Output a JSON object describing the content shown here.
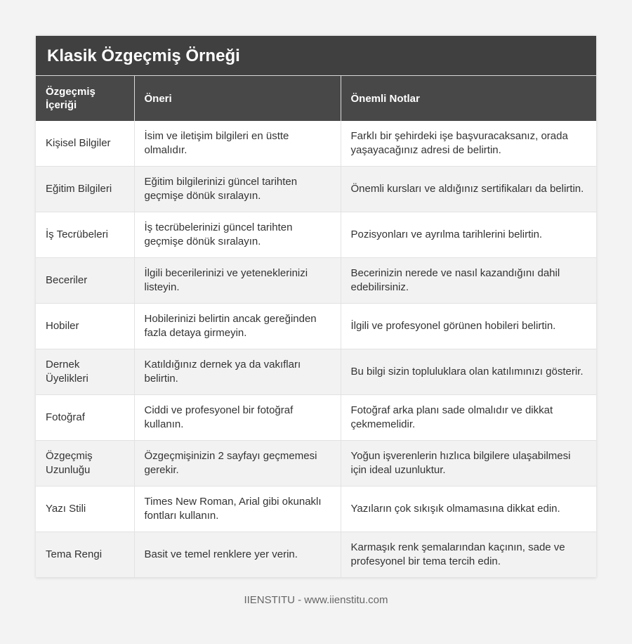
{
  "title": "Klasik Özgeçmiş Örneği",
  "headers": [
    "Özgeçmiş İçeriği",
    "Öneri",
    "Önemli Notlar"
  ],
  "rows": [
    [
      "Kişisel Bilgiler",
      "İsim ve iletişim bilgileri en üstte olmalıdır.",
      "Farklı bir şehirdeki işe başvuracaksanız, orada yaşayacağınız adresi de belirtin."
    ],
    [
      "Eğitim Bilgileri",
      "Eğitim bilgilerinizi güncel tarihten geçmişe dönük sıralayın.",
      "Önemli kursları ve aldığınız sertifikaları da belirtin."
    ],
    [
      "İş Tecrübeleri",
      "İş tecrübelerinizi güncel tarihten geçmişe dönük sıralayın.",
      "Pozisyonları ve ayrılma tarihlerini belirtin."
    ],
    [
      "Beceriler",
      "İlgili becerilerinizi ve yeteneklerinizi listeyin.",
      "Becerinizin nerede ve nasıl kazandığını dahil edebilirsiniz."
    ],
    [
      "Hobiler",
      "Hobilerinizi belirtin ancak gereğinden fazla detaya girmeyin.",
      "İlgili ve profesyonel görünen hobileri belirtin."
    ],
    [
      "Dernek Üyelikleri",
      "Katıldığınız dernek ya da vakıfları belirtin.",
      "Bu bilgi sizin topluluklara olan katılımınızı gösterir."
    ],
    [
      "Fotoğraf",
      "Ciddi ve profesyonel bir fotoğraf kullanın.",
      "Fotoğraf arka planı sade olmalıdır ve dikkat çekmemelidir."
    ],
    [
      "Özgeçmiş Uzunluğu",
      "Özgeçmişinizin 2 sayfayı geçmemesi gerekir.",
      "Yoğun işverenlerin hızlıca bilgilere ulaşabilmesi için ideal uzunluktur."
    ],
    [
      "Yazı Stili",
      "Times New Roman, Arial gibi okunaklı fontları kullanın.",
      "Yazıların çok sıkışık olmamasına dikkat edin."
    ],
    [
      "Tema Rengi",
      "Basit ve temel renklere yer verin.",
      "Karmaşık renk şemalarından kaçının, sade ve profesyonel bir tema tercih edin."
    ]
  ],
  "footer": "IIENSTITU - www.iienstitu.com"
}
